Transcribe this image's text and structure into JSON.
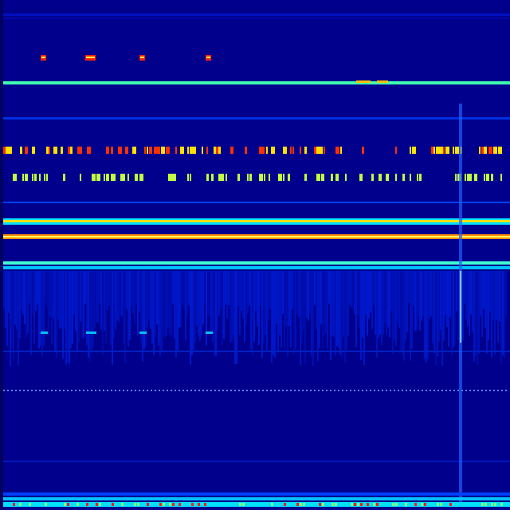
{
  "spectrogram": {
    "colormap": [
      "#00008c",
      "#0000ff",
      "#0080ff",
      "#00ffff",
      "#80ff80",
      "#ffff00",
      "#ff8000",
      "#ff0000"
    ],
    "background_color": "#00008c"
  }
}
